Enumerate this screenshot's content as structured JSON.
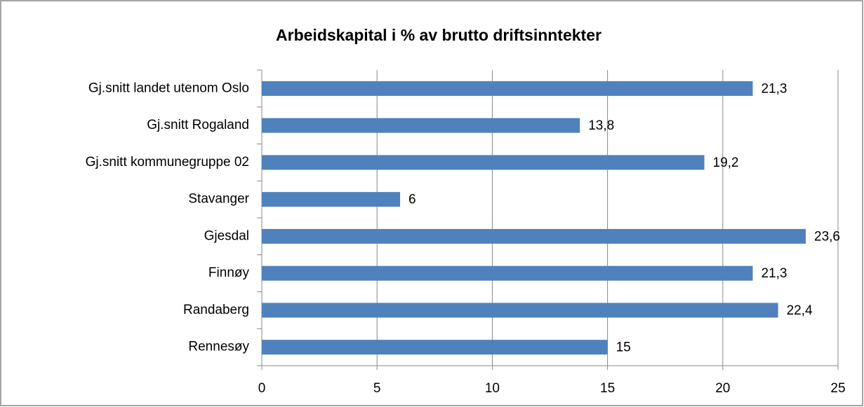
{
  "chart_data": {
    "type": "barh",
    "title": "Arbeidskapital i % av brutto driftsinntekter",
    "categories": [
      "Gj.snitt landet utenom Oslo",
      "Gj.snitt Rogaland",
      "Gj.snitt kommunegruppe 02",
      "Stavanger",
      "Gjesdal",
      "Finnøy",
      "Randaberg",
      "Rennesøy"
    ],
    "values": [
      21.3,
      13.8,
      19.2,
      6,
      23.6,
      21.3,
      22.4,
      15
    ],
    "value_labels": [
      "21,3",
      "13,8",
      "19,2",
      "6",
      "23,6",
      "21,3",
      "22,4",
      "15"
    ],
    "color": "#4f81bd",
    "xlim": [
      0,
      25
    ],
    "xticks": [
      0,
      5,
      10,
      15,
      20,
      25
    ],
    "grid": true
  }
}
